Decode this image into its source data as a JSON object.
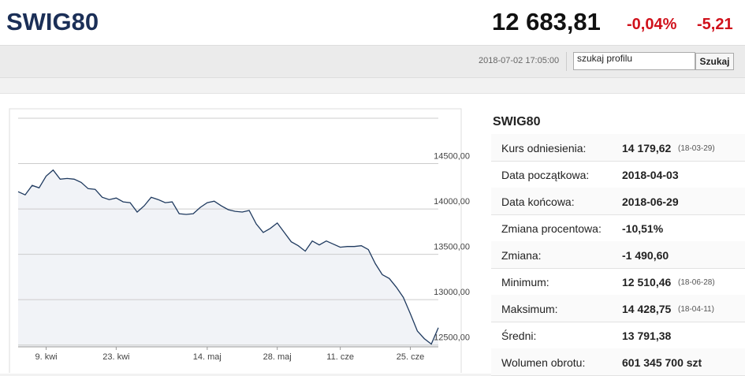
{
  "header": {
    "title": "SWIG80",
    "price": "12 683,81",
    "change_pct": "-0,04%",
    "change": "-5,21"
  },
  "toolbar": {
    "datetime": "2018-07-02 17:05:00",
    "search_placeholder": "szukaj profilu",
    "button": "Szukaj"
  },
  "chart_data": {
    "type": "line",
    "color": "#1f3a5f",
    "area_color": "#f1f3f7",
    "categories": [
      null,
      null,
      null,
      null,
      "9. kwi",
      null,
      null,
      null,
      null,
      null,
      null,
      null,
      null,
      null,
      "23. kwi",
      null,
      null,
      null,
      null,
      null,
      null,
      null,
      null,
      null,
      null,
      null,
      null,
      "14. maj",
      null,
      null,
      null,
      null,
      null,
      null,
      null,
      null,
      null,
      "28. maj",
      null,
      null,
      null,
      null,
      null,
      null,
      null,
      null,
      "11. cze",
      null,
      null,
      null,
      null,
      null,
      null,
      null,
      null,
      null,
      "25. cze",
      null,
      null,
      null,
      null
    ],
    "values": [
      14190,
      14155,
      14260,
      14233,
      14362,
      14429,
      14328,
      14336,
      14328,
      14293,
      14224,
      14216,
      14129,
      14103,
      14121,
      14078,
      14069,
      13966,
      14035,
      14129,
      14103,
      14069,
      14078,
      13948,
      13940,
      13948,
      14017,
      14069,
      14086,
      14035,
      13992,
      13974,
      13966,
      13983,
      13836,
      13741,
      13785,
      13845,
      13741,
      13638,
      13595,
      13535,
      13647,
      13604,
      13647,
      13612,
      13578,
      13586,
      13586,
      13595,
      13552,
      13397,
      13276,
      13233,
      13138,
      13026,
      12845,
      12655,
      12570,
      12510,
      12690
    ],
    "ylim": [
      12480,
      15000
    ],
    "yticks": [
      {
        "value": 12500,
        "label": "12500,00"
      },
      {
        "value": 13000,
        "label": "13000,00"
      },
      {
        "value": 13500,
        "label": "13500,00"
      },
      {
        "value": 14000,
        "label": "14000,00"
      },
      {
        "value": 14500,
        "label": "14500,00"
      }
    ],
    "grid": true
  },
  "table": {
    "title": "SWIG80",
    "rows": [
      {
        "label": "Kurs odniesienia:",
        "value": "14 179,62",
        "note": "(18-03-29)"
      },
      {
        "label": "Data początkowa:",
        "value": "2018-04-03"
      },
      {
        "label": "Data końcowa:",
        "value": "2018-06-29"
      },
      {
        "label": "Zmiana procentowa:",
        "value": "-10,51%"
      },
      {
        "label": "Zmiana:",
        "value": "-1 490,60"
      },
      {
        "label": "Minimum:",
        "value": "12 510,46",
        "note": "(18-06-28)"
      },
      {
        "label": "Maksimum:",
        "value": "14 428,75",
        "note": "(18-04-11)"
      },
      {
        "label": "Średni:",
        "value": "13 791,38"
      },
      {
        "label": "Wolumen obrotu:",
        "value": "601 345 700 szt"
      }
    ]
  }
}
